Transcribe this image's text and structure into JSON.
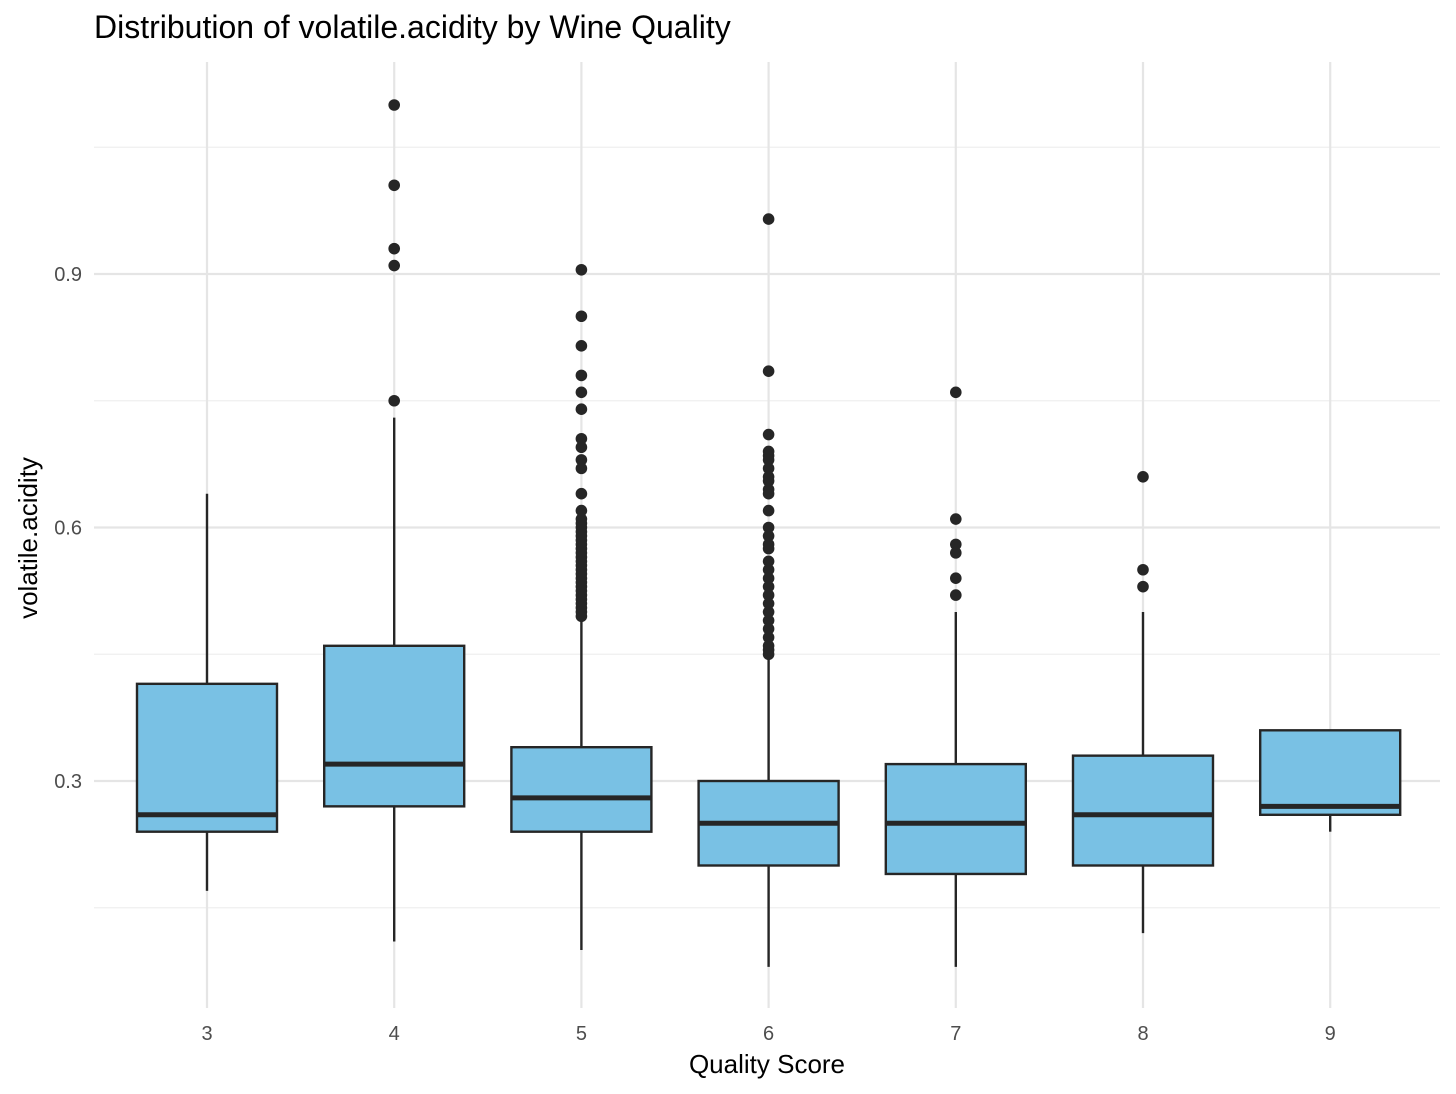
{
  "colors": {
    "box_fill": "#79c1e4",
    "box_stroke": "#262626",
    "grid": "#e5e5e5",
    "background": "#ffffff"
  },
  "chart_data": {
    "type": "boxplot",
    "title": "Distribution of volatile.acidity by Wine Quality",
    "xlabel": "Quality Score",
    "ylabel": "volatile.acidity",
    "ylim": [
      0.05,
      1.15
    ],
    "y_ticks": [
      0.3,
      0.6,
      0.9
    ],
    "y_tick_labels": [
      "0.3",
      "0.6",
      "0.9"
    ],
    "y_minor_ticks": [
      0.15,
      0.45,
      0.75,
      1.05
    ],
    "grid": true,
    "legend": "none",
    "categories": [
      "3",
      "4",
      "5",
      "6",
      "7",
      "8",
      "9"
    ],
    "boxes": [
      {
        "category": "3",
        "lower_whisker": 0.17,
        "q1": 0.24,
        "median": 0.26,
        "q3": 0.415,
        "upper_whisker": 0.64,
        "outliers": []
      },
      {
        "category": "4",
        "lower_whisker": 0.11,
        "q1": 0.27,
        "median": 0.32,
        "q3": 0.46,
        "upper_whisker": 0.73,
        "outliers": [
          1.1,
          1.005,
          0.93,
          0.91,
          0.75
        ]
      },
      {
        "category": "5",
        "lower_whisker": 0.1,
        "q1": 0.24,
        "median": 0.28,
        "q3": 0.34,
        "upper_whisker": 0.49,
        "outliers": [
          0.905,
          0.85,
          0.815,
          0.78,
          0.76,
          0.74,
          0.705,
          0.695,
          0.68,
          0.67,
          0.64,
          0.62,
          0.61,
          0.605,
          0.6,
          0.595,
          0.59,
          0.585,
          0.58,
          0.575,
          0.57,
          0.565,
          0.56,
          0.555,
          0.55,
          0.545,
          0.54,
          0.535,
          0.53,
          0.525,
          0.52,
          0.515,
          0.51,
          0.505,
          0.5,
          0.495
        ]
      },
      {
        "category": "6",
        "lower_whisker": 0.08,
        "q1": 0.2,
        "median": 0.25,
        "q3": 0.3,
        "upper_whisker": 0.445,
        "outliers": [
          0.965,
          0.785,
          0.71,
          0.69,
          0.685,
          0.68,
          0.67,
          0.66,
          0.655,
          0.645,
          0.64,
          0.62,
          0.6,
          0.59,
          0.58,
          0.575,
          0.56,
          0.55,
          0.54,
          0.53,
          0.52,
          0.51,
          0.5,
          0.49,
          0.48,
          0.47,
          0.46,
          0.455,
          0.45
        ]
      },
      {
        "category": "7",
        "lower_whisker": 0.08,
        "q1": 0.19,
        "median": 0.25,
        "q3": 0.32,
        "upper_whisker": 0.5,
        "outliers": [
          0.76,
          0.61,
          0.58,
          0.57,
          0.54,
          0.52
        ]
      },
      {
        "category": "8",
        "lower_whisker": 0.12,
        "q1": 0.2,
        "median": 0.26,
        "q3": 0.33,
        "upper_whisker": 0.5,
        "outliers": [
          0.66,
          0.55,
          0.53
        ]
      },
      {
        "category": "9",
        "lower_whisker": 0.24,
        "q1": 0.26,
        "median": 0.27,
        "q3": 0.36,
        "upper_whisker": 0.36,
        "outliers": []
      }
    ]
  }
}
